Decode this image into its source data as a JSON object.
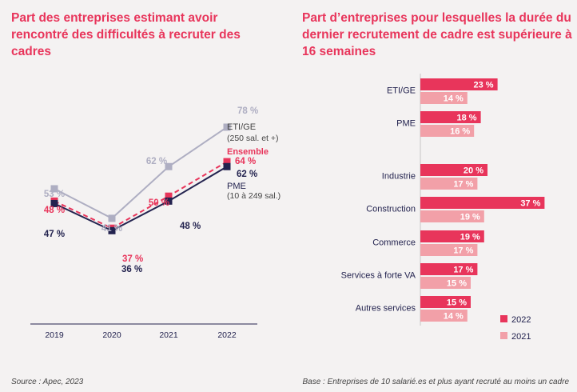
{
  "titles": {
    "left": "Part des entreprises estimant avoir rencontré des difficultés à recruter des cadres",
    "right": "Part d’entreprises pour lesquelles la durée du dernier recrutement de cadre est supérieure à 16 semaines"
  },
  "footer": {
    "source": "Source : Apec, 2023",
    "base": "Base : Entreprises de 10 salarié.es et plus ayant recruté au moins un cadre"
  },
  "colors": {
    "title": "#e8355b",
    "eti": "#aeaec2",
    "ensemble": "#e8355b",
    "pme": "#23234f",
    "bar2022": "#e8355b",
    "bar2021": "#f2a0a8"
  },
  "chart_data": [
    {
      "type": "line",
      "title": "Part des entreprises estimant avoir rencontré des difficultés à recruter des cadres",
      "categories": [
        "2019",
        "2020",
        "2021",
        "2022"
      ],
      "ylim": [
        30,
        85
      ],
      "series": [
        {
          "name": "ETI/GE",
          "values": [
            53,
            41,
            62,
            78
          ],
          "labels": [
            "53 %",
            "41 %",
            "62 %",
            "78 %"
          ],
          "style": "solid"
        },
        {
          "name": "Ensemble",
          "values": [
            48,
            37,
            50,
            64
          ],
          "labels": [
            "48 %",
            "37 %",
            "50 %",
            "64 %"
          ],
          "style": "dashed"
        },
        {
          "name": "PME",
          "values": [
            47,
            36,
            48,
            62
          ],
          "labels": [
            "47 %",
            "36 %",
            "48 %",
            "62 %"
          ],
          "style": "solid"
        }
      ],
      "series_labels": {
        "eti_name": "ETI/GE",
        "eti_sub": "(250 sal. et +)",
        "ensemble_name": "Ensemble",
        "pme_name": "PME",
        "pme_sub": "(10 à 249  sal.)"
      }
    },
    {
      "type": "bar",
      "orientation": "horizontal",
      "title": "Part d’entreprises pour lesquelles la durée du dernier recrutement de cadre est supérieure à 16 semaines",
      "categories": [
        "ETI/GE",
        "PME",
        "Industrie",
        "Construction",
        "Commerce",
        "Services à forte VA",
        "Autres services"
      ],
      "series": [
        {
          "name": "2022",
          "values": [
            23,
            18,
            20,
            37,
            19,
            17,
            15
          ],
          "labels": [
            "23 %",
            "18 %",
            "20 %",
            "37 %",
            "19 %",
            "17 %",
            "15 %"
          ]
        },
        {
          "name": "2021",
          "values": [
            14,
            16,
            17,
            19,
            17,
            15,
            14
          ],
          "labels": [
            "14 %",
            "16 %",
            "17 %",
            "19 %",
            "17 %",
            "15 %",
            "14 %"
          ]
        }
      ],
      "legend": [
        "2022",
        "2021"
      ],
      "legend_position": "bottom-right"
    }
  ]
}
